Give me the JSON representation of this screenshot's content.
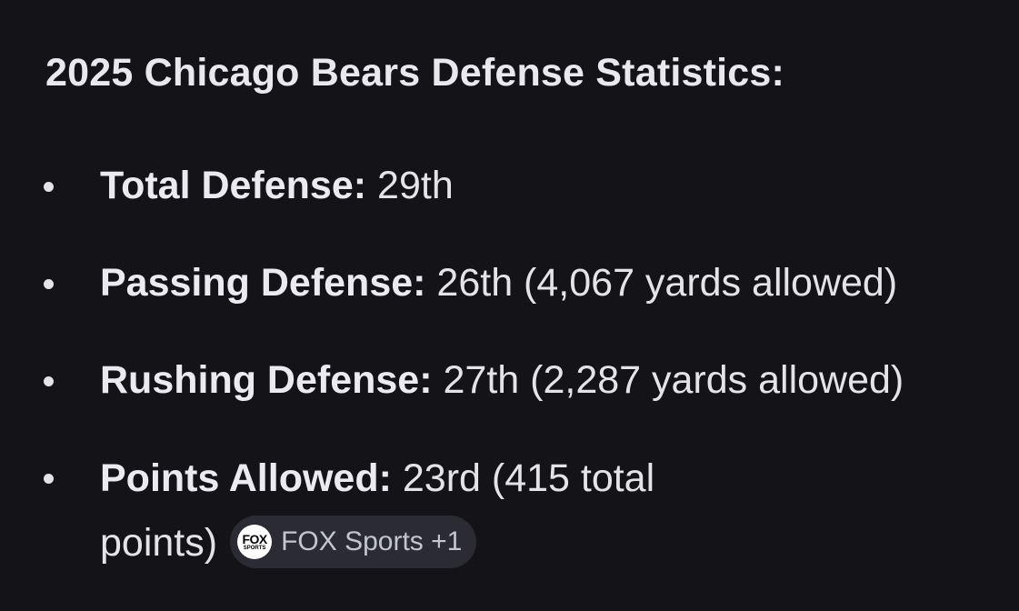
{
  "heading": "2025 Chicago Bears Defense Statistics:",
  "stats": [
    {
      "label": "Total Defense:",
      "value": "29th"
    },
    {
      "label": "Passing Defense:",
      "value": "26th (4,067 yards allowed)"
    },
    {
      "label": "Rushing Defense:",
      "value": "27th (2,287 yards allowed)"
    },
    {
      "label": "Points Allowed:",
      "value": "23rd (415 total points)"
    }
  ],
  "source_chip": {
    "logo_text_top": "FOX",
    "logo_text_bottom": "SPORTS",
    "label": "FOX Sports +1",
    "icon": "fox-sports-logo-icon"
  }
}
